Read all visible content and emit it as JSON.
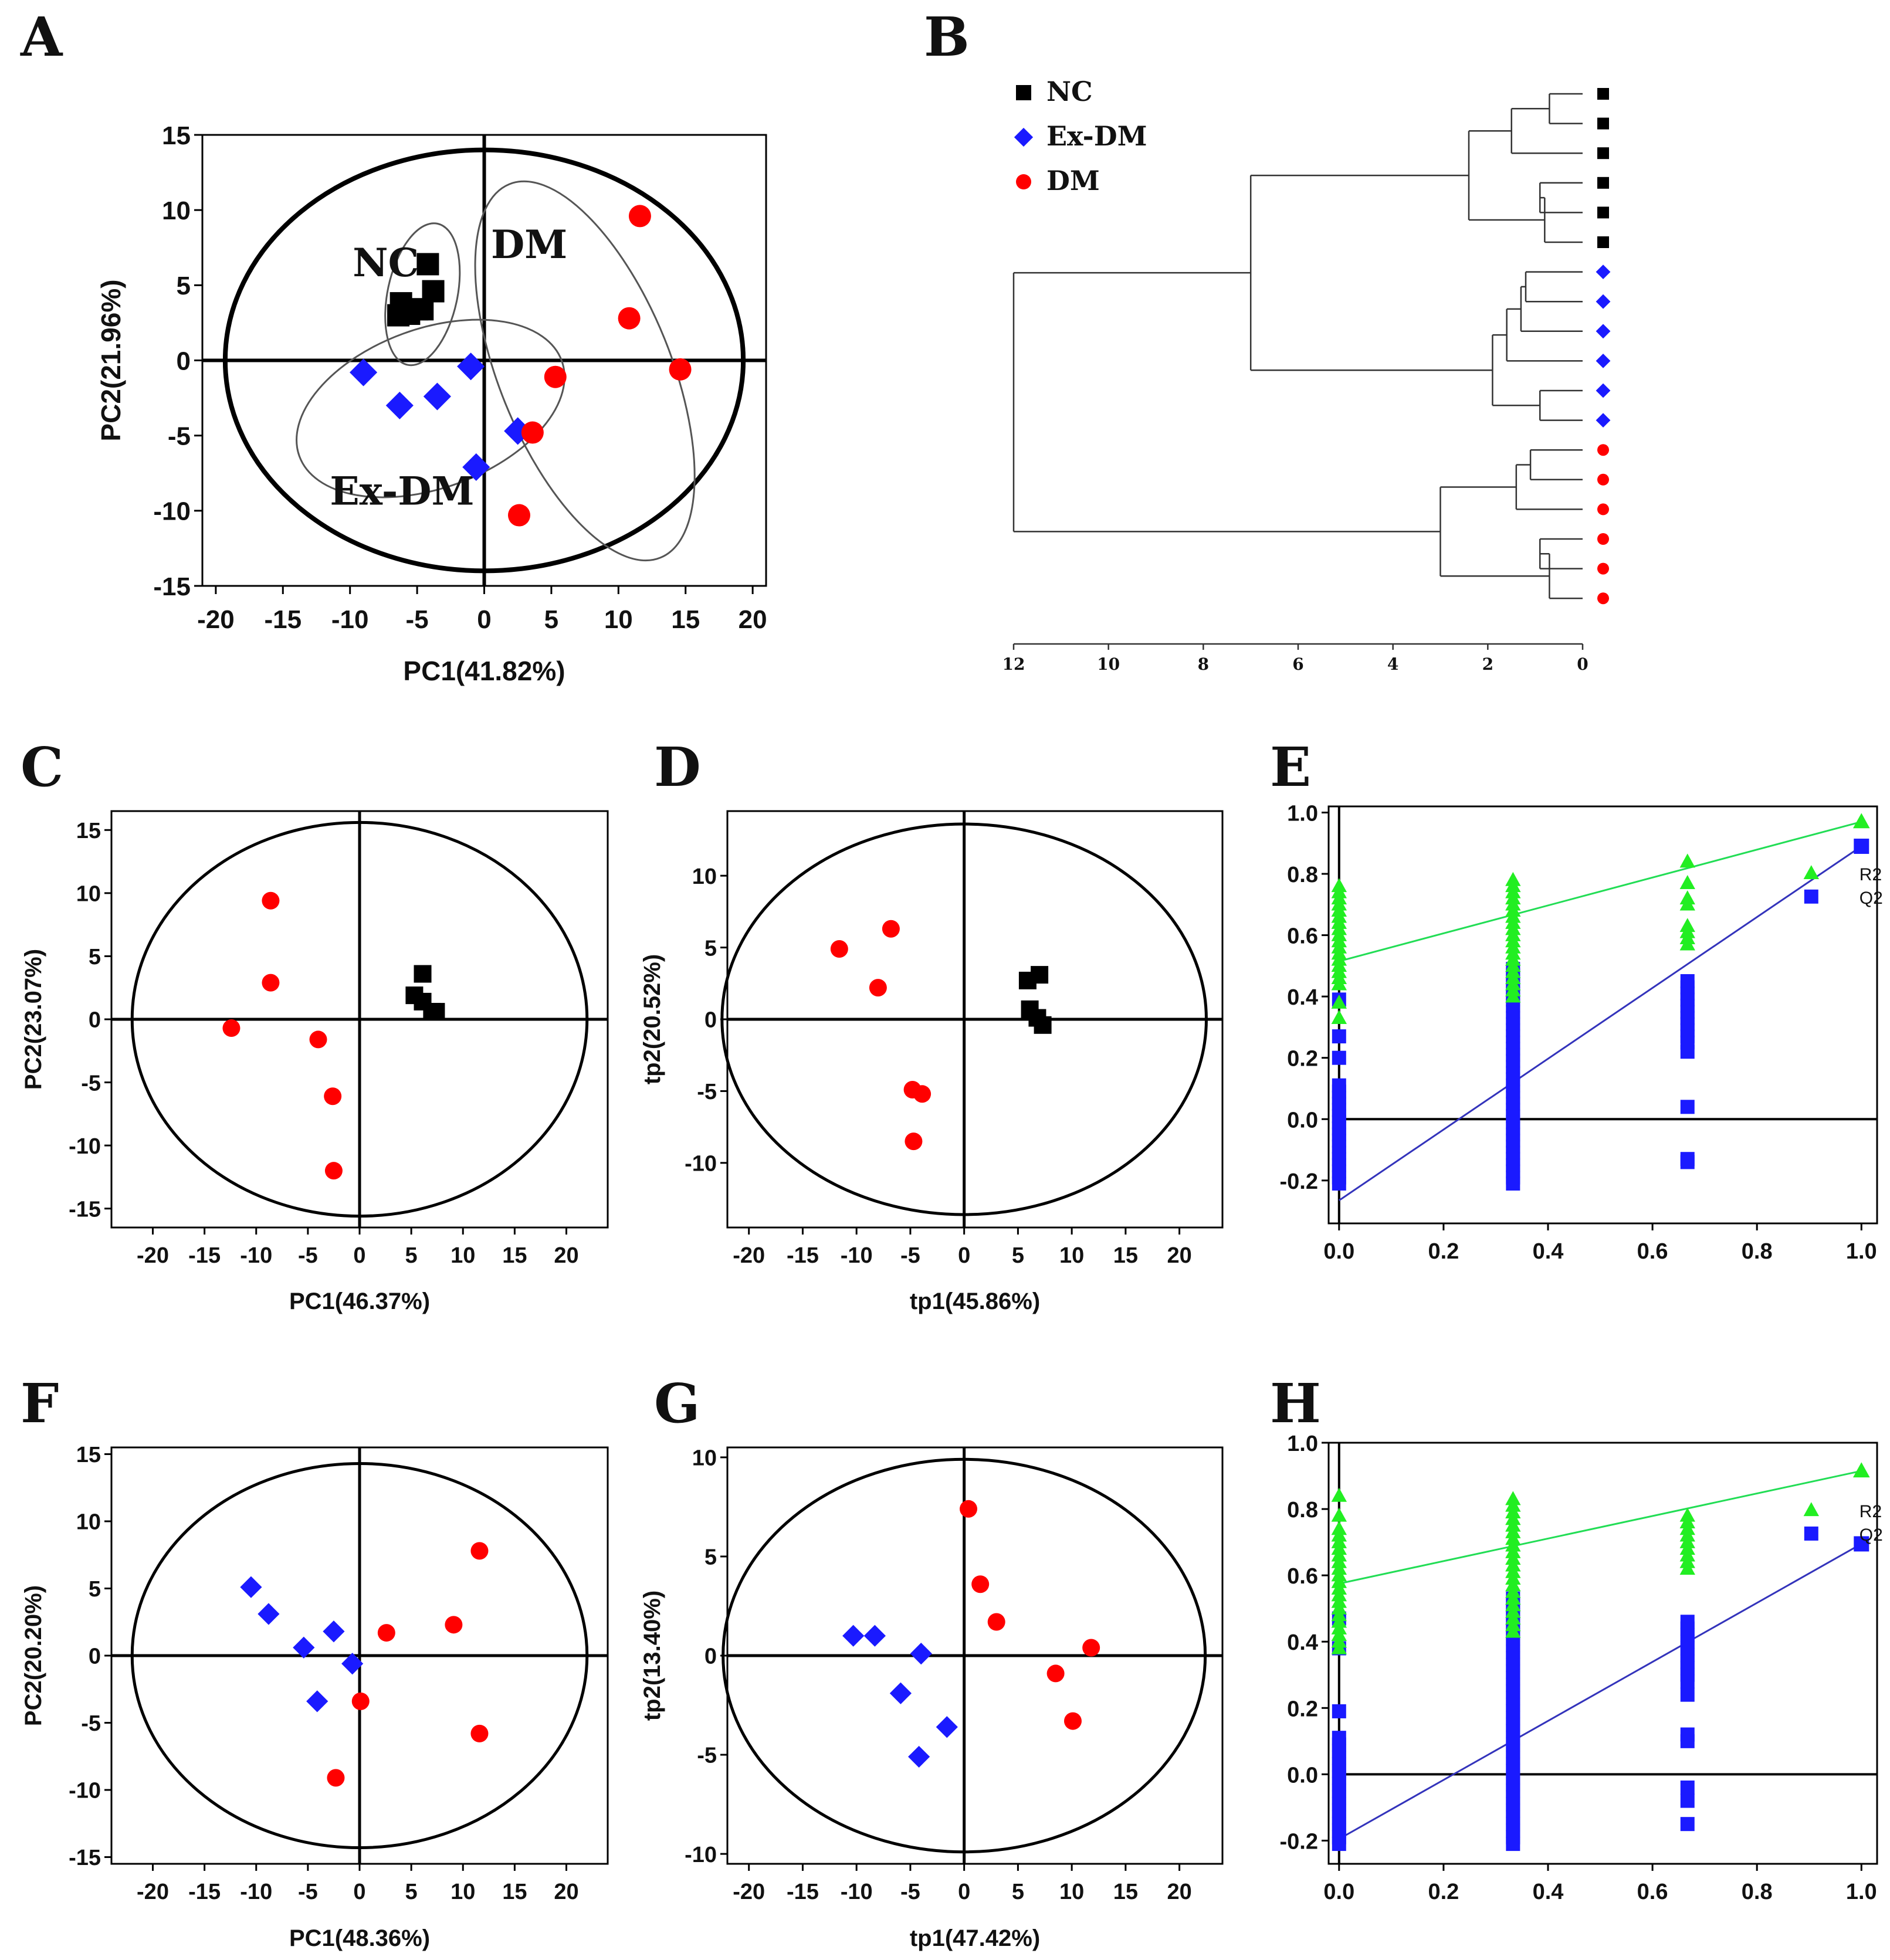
{
  "colors": {
    "NC": "#000000",
    "ExDM": "#1a1aff",
    "DM": "#ff0000",
    "R2": "#22ee22",
    "Q2": "#1a1aff",
    "R2line": "#22dd55",
    "Q2line": "#3333bb"
  },
  "chart_data": [
    {
      "panel": "A",
      "type": "scatter",
      "xlabel": "PC1(41.82%)",
      "ylabel": "PC2(21.96%)",
      "xlim": [
        -21,
        21
      ],
      "ylim": [
        -15,
        15
      ],
      "xticks": [
        "-20",
        "-15",
        "-10",
        "-5",
        "0",
        "5",
        "10",
        "15",
        "20"
      ],
      "yticks": [
        "15",
        "10",
        "5",
        "0",
        "-5",
        "-10",
        "-15"
      ],
      "ellipse": {
        "cx": 0,
        "cy": 0,
        "rx": 19.3,
        "ry": 14
      },
      "group_labels": [
        {
          "text": "NC",
          "x": -9.8,
          "y": 5.6
        },
        {
          "text": "DM",
          "x": 0.5,
          "y": 6.8
        },
        {
          "text": "Ex-DM",
          "x": -11.5,
          "y": -9.6
        }
      ],
      "group_ellipses": [
        {
          "cx": -4.6,
          "cy": 4.4,
          "rx": 2.6,
          "ry": 4.8,
          "angle": 12
        },
        {
          "cx": -4.0,
          "cy": -3.2,
          "rx": 10.4,
          "ry": 5.3,
          "angle": -20
        },
        {
          "cx": 7.5,
          "cy": -0.7,
          "rx": 6.4,
          "ry": 13.4,
          "angle": -22
        }
      ],
      "series": [
        {
          "name": "NC",
          "marker": "square",
          "points": [
            [
              -4.2,
              6.4
            ],
            [
              -3.8,
              4.6
            ],
            [
              -6.2,
              3.8
            ],
            [
              -6.4,
              3.0
            ],
            [
              -5.6,
              3.1
            ],
            [
              -4.6,
              3.4
            ],
            [
              -5.0,
              3.4
            ]
          ]
        },
        {
          "name": "Ex-DM",
          "marker": "diamond",
          "points": [
            [
              -9.0,
              -0.8
            ],
            [
              -6.3,
              -3.0
            ],
            [
              -3.5,
              -2.4
            ],
            [
              -1.0,
              -0.4
            ],
            [
              2.5,
              -4.7
            ],
            [
              -0.6,
              -7.1
            ]
          ]
        },
        {
          "name": "DM",
          "marker": "circle",
          "points": [
            [
              11.6,
              9.6
            ],
            [
              10.8,
              2.8
            ],
            [
              14.6,
              -0.6
            ],
            [
              5.3,
              -1.1
            ],
            [
              3.6,
              -4.8
            ],
            [
              2.6,
              -10.3
            ]
          ]
        }
      ]
    },
    {
      "panel": "B",
      "type": "dendrogram",
      "legend": [
        {
          "name": "NC",
          "marker": "square"
        },
        {
          "name": "Ex-DM",
          "marker": "diamond"
        },
        {
          "name": "DM",
          "marker": "circle"
        }
      ],
      "xticks": [
        "12",
        "10",
        "8",
        "6",
        "4",
        "2",
        "0"
      ],
      "leaves": [
        "NC",
        "NC",
        "NC",
        "NC",
        "NC",
        "NC",
        "Ex-DM",
        "Ex-DM",
        "Ex-DM",
        "Ex-DM",
        "Ex-DM",
        "Ex-DM",
        "DM",
        "DM",
        "DM",
        "DM",
        "DM",
        "DM"
      ],
      "merges": [
        [
          0,
          1,
          0.7
        ],
        [
          18,
          2,
          1.5
        ],
        [
          3,
          4,
          0.9
        ],
        [
          20,
          5,
          0.8
        ],
        [
          19,
          21,
          2.4
        ],
        [
          6,
          7,
          1.2
        ],
        [
          23,
          8,
          1.3
        ],
        [
          24,
          9,
          1.6
        ],
        [
          10,
          11,
          0.9
        ],
        [
          25,
          26,
          1.9
        ],
        [
          22,
          27,
          7.0
        ],
        [
          12,
          13,
          1.1
        ],
        [
          29,
          14,
          1.4
        ],
        [
          15,
          16,
          0.9
        ],
        [
          31,
          17,
          0.7
        ],
        [
          30,
          32,
          3.0
        ],
        [
          28,
          33,
          12.0
        ]
      ]
    },
    {
      "panel": "C",
      "type": "scatter",
      "xlabel": "PC1(46.37%)",
      "ylabel": "PC2(23.07%)",
      "xlim": [
        -24,
        24
      ],
      "ylim": [
        -16.5,
        16.5
      ],
      "xticks": [
        "-20",
        "-15",
        "-10",
        "-5",
        "0",
        "5",
        "10",
        "15",
        "20"
      ],
      "yticks": [
        "15",
        "10",
        "5",
        "0",
        "-5",
        "-10",
        "-15"
      ],
      "ellipse": {
        "cx": 0,
        "cy": 0,
        "rx": 22,
        "ry": 15.6
      },
      "series": [
        {
          "name": "DM",
          "marker": "circle",
          "points": [
            [
              -8.6,
              9.4
            ],
            [
              -8.6,
              2.9
            ],
            [
              -12.4,
              -0.7
            ],
            [
              -4.0,
              -1.6
            ],
            [
              -2.6,
              -6.1
            ],
            [
              -2.5,
              -12.0
            ]
          ]
        },
        {
          "name": "NC",
          "marker": "square",
          "points": [
            [
              6.1,
              3.6
            ],
            [
              5.3,
              1.9
            ],
            [
              6.1,
              1.4
            ],
            [
              7.0,
              0.6
            ],
            [
              7.4,
              0.6
            ]
          ]
        }
      ]
    },
    {
      "panel": "D",
      "type": "scatter",
      "xlabel": "tp1(45.86%)",
      "ylabel": "tp2(20.52%)",
      "xlim": [
        -22,
        24
      ],
      "ylim": [
        -14.5,
        14.5
      ],
      "xticks": [
        "-20",
        "-15",
        "-10",
        "-5",
        "0",
        "5",
        "10",
        "15",
        "20"
      ],
      "yticks": [
        "10",
        "5",
        "0",
        "-5",
        "-10"
      ],
      "ellipse": {
        "cx": 0,
        "cy": 0,
        "rx": 22.5,
        "ry": 13.6
      },
      "series": [
        {
          "name": "DM",
          "marker": "circle",
          "points": [
            [
              -11.6,
              4.9
            ],
            [
              -6.8,
              6.3
            ],
            [
              -8.0,
              2.2
            ],
            [
              -4.8,
              -4.9
            ],
            [
              -3.9,
              -5.2
            ],
            [
              -4.7,
              -8.5
            ]
          ]
        },
        {
          "name": "NC",
          "marker": "square",
          "points": [
            [
              7.0,
              3.1
            ],
            [
              5.9,
              2.7
            ],
            [
              6.1,
              0.7
            ],
            [
              6.8,
              0.1
            ],
            [
              7.3,
              -0.4
            ]
          ]
        }
      ]
    },
    {
      "panel": "E",
      "type": "scatter",
      "xlim": [
        -0.02,
        1.03
      ],
      "ylim": [
        -0.34,
        1.02
      ],
      "xticks": [
        "0.0",
        "0.2",
        "0.4",
        "0.6",
        "0.8",
        "1.0"
      ],
      "yticks": [
        "1.0",
        "0.8",
        "0.6",
        "0.4",
        "0.2",
        "0.0",
        "-0.2"
      ],
      "legend": [
        {
          "name": "R2",
          "marker": "triangle"
        },
        {
          "name": "Q2",
          "marker": "square"
        }
      ],
      "lines": [
        {
          "name": "R2",
          "x": [
            0.0,
            1.0
          ],
          "y": [
            0.515,
            0.97
          ]
        },
        {
          "name": "Q2",
          "x": [
            0.0,
            1.0
          ],
          "y": [
            -0.265,
            0.89
          ]
        }
      ],
      "series": [
        {
          "name": "R2",
          "marker": "triangle",
          "x": [
            1.0
          ],
          "y": [
            0.97
          ]
        },
        {
          "name": "Q2",
          "marker": "square",
          "x": [
            1.0
          ],
          "y": [
            0.89
          ]
        }
      ],
      "columns": [
        {
          "series": "R2",
          "x": 0.0,
          "range": [
            0.44,
            0.76
          ],
          "extra": [
            0.33,
            0.38
          ]
        },
        {
          "series": "R2",
          "x": 0.333,
          "range": [
            0.4,
            0.78
          ]
        },
        {
          "series": "R2",
          "x": 0.667,
          "range": [
            0.57,
            0.63
          ],
          "extra": [
            0.7,
            0.72,
            0.77,
            0.84
          ]
        },
        {
          "series": "Q2",
          "x": 0.0,
          "range": [
            -0.21,
            0.12
          ],
          "extra": [
            0.2,
            0.27,
            0.39
          ]
        },
        {
          "series": "Q2",
          "x": 0.333,
          "range": [
            -0.21,
            0.5
          ]
        },
        {
          "series": "Q2",
          "x": 0.667,
          "range": [
            0.25,
            0.45
          ],
          "extra": [
            0.04,
            -0.13,
            -0.14,
            0.22
          ]
        }
      ]
    },
    {
      "panel": "F",
      "type": "scatter",
      "xlabel": "PC1(48.36%)",
      "ylabel": "PC2(20.20%)",
      "xlim": [
        -24,
        24
      ],
      "ylim": [
        -15.5,
        15.5
      ],
      "xticks": [
        "-20",
        "-15",
        "-10",
        "-5",
        "0",
        "5",
        "10",
        "15",
        "20"
      ],
      "yticks": [
        "15",
        "10",
        "5",
        "0",
        "-5",
        "-10",
        "-15"
      ],
      "ellipse": {
        "cx": 0,
        "cy": 0,
        "rx": 22,
        "ry": 14.3
      },
      "series": [
        {
          "name": "Ex-DM",
          "marker": "diamond",
          "points": [
            [
              -10.5,
              5.1
            ],
            [
              -8.8,
              3.1
            ],
            [
              -5.4,
              0.6
            ],
            [
              -2.5,
              1.8
            ],
            [
              -0.7,
              -0.6
            ],
            [
              -4.1,
              -3.4
            ]
          ]
        },
        {
          "name": "DM",
          "marker": "circle",
          "points": [
            [
              11.6,
              7.8
            ],
            [
              9.1,
              2.3
            ],
            [
              2.6,
              1.7
            ],
            [
              0.1,
              -3.4
            ],
            [
              11.6,
              -5.8
            ],
            [
              -2.3,
              -9.1
            ]
          ]
        }
      ]
    },
    {
      "panel": "G",
      "type": "scatter",
      "xlabel": "tp1(47.42%)",
      "ylabel": "tp2(13.40%)",
      "xlim": [
        -22,
        24
      ],
      "ylim": [
        -10.5,
        10.5
      ],
      "xticks": [
        "-20",
        "-15",
        "-10",
        "-5",
        "0",
        "5",
        "10",
        "15",
        "20"
      ],
      "yticks": [
        "10",
        "5",
        "0",
        "-5",
        "-10"
      ],
      "ellipse": {
        "cx": 0,
        "cy": 0,
        "rx": 22.4,
        "ry": 9.9
      },
      "series": [
        {
          "name": "Ex-DM",
          "marker": "diamond",
          "points": [
            [
              -10.3,
              1.0
            ],
            [
              -8.3,
              1.0
            ],
            [
              -4.0,
              0.1
            ],
            [
              -5.9,
              -1.9
            ],
            [
              -1.6,
              -3.6
            ],
            [
              -4.2,
              -5.1
            ]
          ]
        },
        {
          "name": "DM",
          "marker": "circle",
          "points": [
            [
              0.4,
              7.4
            ],
            [
              1.5,
              3.6
            ],
            [
              3.0,
              1.7
            ],
            [
              11.8,
              0.4
            ],
            [
              8.5,
              -0.9
            ],
            [
              10.1,
              -3.3
            ]
          ]
        }
      ]
    },
    {
      "panel": "H",
      "type": "scatter",
      "xlim": [
        -0.02,
        1.03
      ],
      "ylim": [
        -0.27,
        1.0
      ],
      "xticks": [
        "0.0",
        "0.2",
        "0.4",
        "0.6",
        "0.8",
        "1.0"
      ],
      "yticks": [
        "1.0",
        "0.8",
        "0.6",
        "0.4",
        "0.2",
        "0.0",
        "-0.2"
      ],
      "legend": [
        {
          "name": "R2",
          "marker": "triangle"
        },
        {
          "name": "Q2",
          "marker": "square"
        }
      ],
      "lines": [
        {
          "name": "R2",
          "x": [
            0.0,
            1.0
          ],
          "y": [
            0.575,
            0.915
          ]
        },
        {
          "name": "Q2",
          "x": [
            0.0,
            1.0
          ],
          "y": [
            -0.195,
            0.695
          ]
        }
      ],
      "series": [
        {
          "name": "R2",
          "marker": "triangle",
          "x": [
            1.0
          ],
          "y": [
            0.915
          ]
        },
        {
          "name": "Q2",
          "marker": "square",
          "x": [
            1.0
          ],
          "y": [
            0.695
          ]
        }
      ],
      "columns": [
        {
          "series": "R2",
          "x": 0.0,
          "range": [
            0.38,
            0.74
          ],
          "extra": [
            0.78,
            0.84
          ]
        },
        {
          "series": "R2",
          "x": 0.333,
          "range": [
            0.43,
            0.84
          ]
        },
        {
          "series": "R2",
          "x": 0.667,
          "range": [
            0.62,
            0.79
          ]
        },
        {
          "series": "Q2",
          "x": 0.0,
          "range": [
            -0.21,
            0.11
          ],
          "extra": [
            0.19,
            0.38,
            0.47
          ]
        },
        {
          "series": "Q2",
          "x": 0.333,
          "range": [
            -0.21,
            0.53
          ]
        },
        {
          "series": "Q2",
          "x": 0.667,
          "range": [
            0.28,
            0.46
          ],
          "extra": [
            0.24,
            0.12,
            0.1,
            -0.04,
            -0.08,
            -0.15
          ]
        }
      ]
    }
  ]
}
